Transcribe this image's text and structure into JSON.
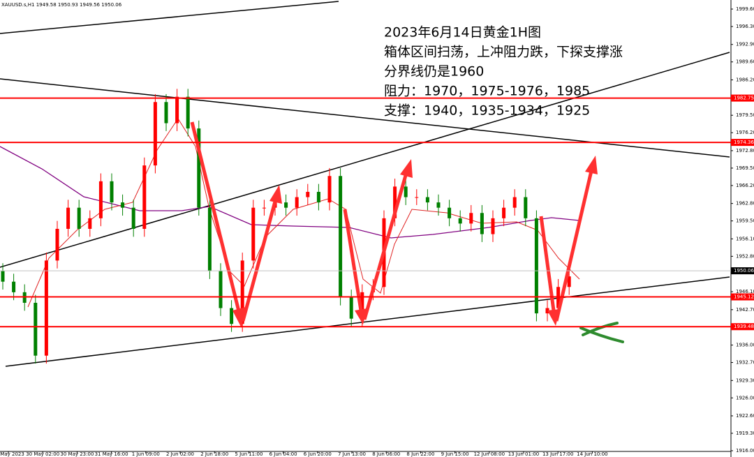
{
  "chart_data": {
    "type": "candlestick",
    "header": "XAUUSD.s,H1  1949.58 1950.93 1949.56 1950.06",
    "annotations": [
      "2023年6月14日黄金1H图",
      "箱体区间扫荡，上冲阻力跌，下探支撑涨",
      "分界线仍是1960",
      "阻力：1970，1975-1976，1985",
      "支撑：1940，1935-1934，1925"
    ],
    "categories": [
      "29 May 2023",
      "30 May 02:00",
      "30 May 23:00",
      "31 May 16:00",
      "1 Jun 09:00",
      "2 Jun 02:00",
      "2 Jun 18:00",
      "5 Jun 11:00",
      "6 Jun 04:00",
      "6 Jun 20:00",
      "7 Jun 13:00",
      "8 Jun 06:00",
      "8 Jun 22:00",
      "9 Jun 15:00",
      "12 Jun 08:00",
      "13 Jun 01:00",
      "13 Jun 17:00",
      "14 Jun 10:00"
    ],
    "up_color": "#ff0000",
    "down_color": "#008000",
    "candles": [
      [
        1950,
        1951.5,
        1946.5,
        1948
      ],
      [
        1948,
        1949.5,
        1944.5,
        1946
      ],
      [
        1946,
        1947.5,
        1942.5,
        1944
      ],
      [
        1944,
        1945.5,
        1932.5,
        1934
      ],
      [
        1934,
        1953.5,
        1932.5,
        1952
      ],
      [
        1952,
        1959.5,
        1950.5,
        1958
      ],
      [
        1958,
        1963.5,
        1956.5,
        1962
      ],
      [
        1962,
        1963.5,
        1956.5,
        1958
      ],
      [
        1958,
        1961.5,
        1956.5,
        1960
      ],
      [
        1960,
        1968.5,
        1958.5,
        1967
      ],
      [
        1967,
        1968.5,
        1961.5,
        1963
      ],
      [
        1963,
        1964.5,
        1960.5,
        1962
      ],
      [
        1962,
        1963.5,
        1956.5,
        1958
      ],
      [
        1958,
        1971.5,
        1956.5,
        1970
      ],
      [
        1970,
        1983.5,
        1968.5,
        1982
      ],
      [
        1982,
        1983.5,
        1976.5,
        1978
      ],
      [
        1978,
        1984.5,
        1976.5,
        1983
      ],
      [
        1983,
        1984.5,
        1975.5,
        1977
      ],
      [
        1977,
        1978.5,
        1960.5,
        1962
      ],
      [
        1962,
        1963.5,
        1948.5,
        1950
      ],
      [
        1950,
        1951.5,
        1941.5,
        1943
      ],
      [
        1943,
        1944.5,
        1938.5,
        1940
      ],
      [
        1940,
        1953.5,
        1938.5,
        1952
      ],
      [
        1952,
        1963.5,
        1950.5,
        1962
      ],
      [
        1962,
        1963.5,
        1960.5,
        1962
      ],
      [
        1962,
        1964.5,
        1960.5,
        1963
      ],
      [
        1963,
        1964.5,
        1960.5,
        1962
      ],
      [
        1962,
        1965.5,
        1960.5,
        1964
      ],
      [
        1964,
        1966.5,
        1962.5,
        1965
      ],
      [
        1965,
        1966.5,
        1961.5,
        1963
      ],
      [
        1963,
        1969.5,
        1961.5,
        1968
      ],
      [
        1968,
        1969.5,
        1943.5,
        1945
      ],
      [
        1945,
        1946.5,
        1939.5,
        1941
      ],
      [
        1941,
        1947.5,
        1939.5,
        1946
      ],
      [
        1946,
        1948.5,
        1944.5,
        1947
      ],
      [
        1947,
        1961.5,
        1945.5,
        1960
      ],
      [
        1960,
        1967.5,
        1958.5,
        1966
      ],
      [
        1966,
        1967.5,
        1962.5,
        1964
      ],
      [
        1964,
        1965.5,
        1962.5,
        1964
      ],
      [
        1964,
        1965.5,
        1961.5,
        1963
      ],
      [
        1963,
        1964.5,
        1960.5,
        1962
      ],
      [
        1962,
        1963.5,
        1958.5,
        1960
      ],
      [
        1960,
        1961.5,
        1957.5,
        1959
      ],
      [
        1959,
        1962.5,
        1957.5,
        1961
      ],
      [
        1961,
        1962.5,
        1955.5,
        1957
      ],
      [
        1957,
        1961.5,
        1955.5,
        1960
      ],
      [
        1960,
        1963.5,
        1958.5,
        1962
      ],
      [
        1962,
        1965.5,
        1960.5,
        1964
      ],
      [
        1964,
        1965.5,
        1958.5,
        1960
      ],
      [
        1960,
        1961.5,
        1940.5,
        1942
      ],
      [
        1942,
        1944.5,
        1940.5,
        1943
      ],
      [
        1943,
        1948.5,
        1941.5,
        1947
      ],
      [
        1947,
        1950.5,
        1945.5,
        1949
      ]
    ],
    "levels": [
      {
        "value": 1982.75,
        "color": "#ff0000"
      },
      {
        "value": 1974.36,
        "color": "#ff0000"
      },
      {
        "value": 1945.12,
        "color": "#ff0000"
      },
      {
        "value": 1939.48,
        "color": "#ff0000"
      },
      {
        "value": 1950.06,
        "color": "#c0c0c0"
      }
    ],
    "ylim": [
      1916,
      1999.6
    ],
    "yticks": [
      {
        "value": 1999.6,
        "label": "1999.60"
      },
      {
        "value": 1996.3,
        "label": "1996.30"
      },
      {
        "value": 1992.9,
        "label": "1992.90"
      },
      {
        "value": 1989.6,
        "label": "1989.60"
      },
      {
        "value": 1986.2,
        "label": "1986.20"
      },
      {
        "value": 1979.5,
        "label": "1979.50"
      },
      {
        "value": 1976.2,
        "label": "1976.20"
      },
      {
        "value": 1972.8,
        "label": "1972.80"
      },
      {
        "value": 1969.5,
        "label": "1969.50"
      },
      {
        "value": 1966.2,
        "label": "1966.20"
      },
      {
        "value": 1962.8,
        "label": "1962.80"
      },
      {
        "value": 1959.5,
        "label": "1959.50"
      },
      {
        "value": 1956.1,
        "label": "1956.10"
      },
      {
        "value": 1952.8,
        "label": "1952.80"
      },
      {
        "value": 1946.1,
        "label": "1946.10"
      },
      {
        "value": 1942.7,
        "label": "1942.70"
      },
      {
        "value": 1936,
        "label": "1936.00"
      },
      {
        "value": 1932.7,
        "label": "1932.70"
      },
      {
        "value": 1929.3,
        "label": "1929.30"
      },
      {
        "value": 1926,
        "label": "1926.00"
      },
      {
        "value": 1922.6,
        "label": "1922.60"
      },
      {
        "value": 1919.3,
        "label": "1919.30"
      },
      {
        "value": 1916,
        "label": "1916.00"
      }
    ]
  }
}
